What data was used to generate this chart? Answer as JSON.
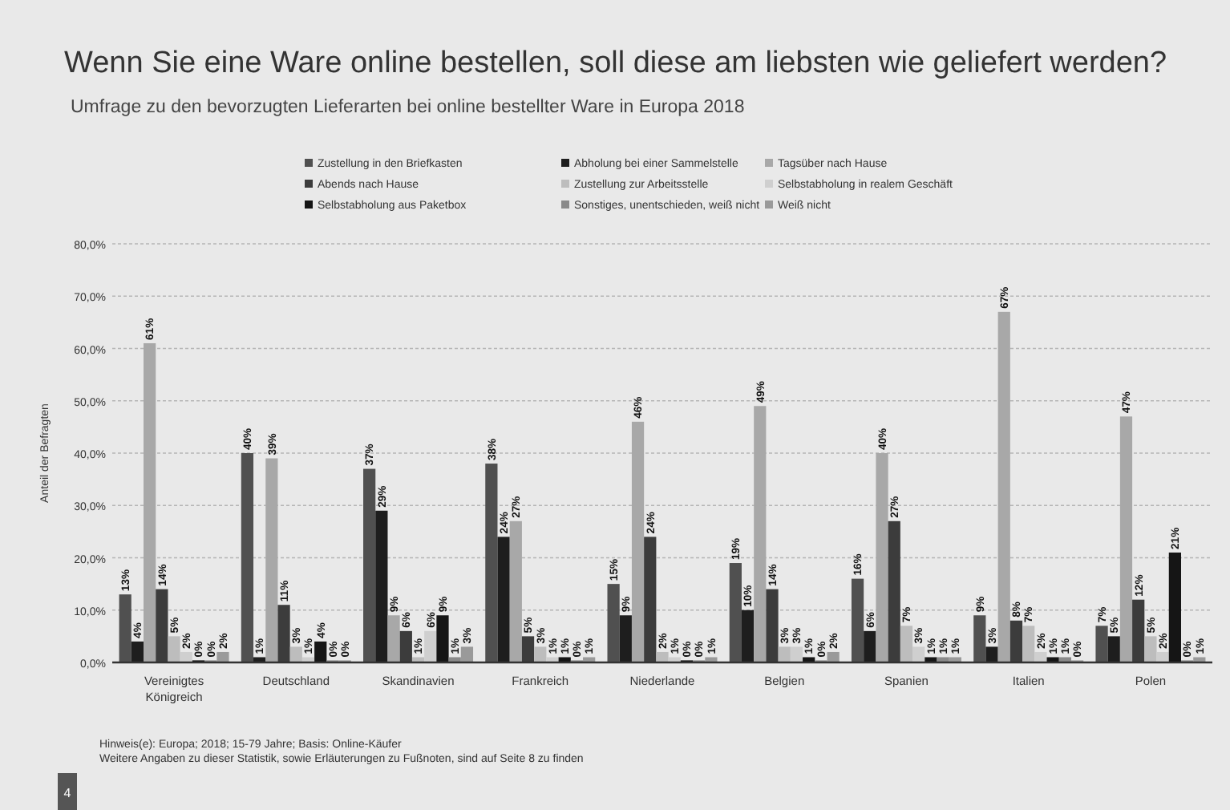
{
  "chart_data": {
    "type": "bar",
    "title": "Wenn Sie eine Ware online bestellen, soll diese am liebsten wie geliefert werden?",
    "subtitle": "Umfrage zu den bevorzugten Lieferarten bei online bestellter Ware in Europa 2018",
    "ylabel": "Anteil der Befragten",
    "categories": [
      "Vereinigtes Königreich",
      "Deutschland",
      "Skandinavien",
      "Frankreich",
      "Niederlande",
      "Belgien",
      "Spanien",
      "Italien",
      "Polen"
    ],
    "series": [
      {
        "name": "Zustellung in den Briefkasten",
        "color": "#505050",
        "values": [
          13,
          40,
          37,
          38,
          15,
          19,
          16,
          9,
          7
        ],
        "value_labels": [
          "13%",
          "40%",
          "37%",
          "38%",
          "15%",
          "19%",
          "16%",
          "9%",
          "7%"
        ]
      },
      {
        "name": "Abholung bei einer Sammelstelle",
        "color": "#1e1e1e",
        "values": [
          4,
          1,
          29,
          24,
          9,
          10,
          6,
          3,
          5
        ],
        "value_labels": [
          "4%",
          "1%",
          "29%",
          "24%",
          "9%",
          "10%",
          "6%",
          "3%",
          "5%"
        ]
      },
      {
        "name": "Tagsüber nach Hause",
        "color": "#a8a8a8",
        "values": [
          61,
          39,
          9,
          27,
          46,
          49,
          40,
          67,
          47
        ],
        "value_labels": [
          "61%",
          "39%",
          "9%",
          "27%",
          "46%",
          "49%",
          "40%",
          "67%",
          "47%"
        ]
      },
      {
        "name": "Abends nach Hause",
        "color": "#3c3c3c",
        "values": [
          14,
          11,
          6,
          5,
          24,
          14,
          27,
          8,
          12
        ],
        "value_labels": [
          "14%",
          "11%",
          "6%",
          "5%",
          "24%",
          "14%",
          "27%",
          "8%",
          "12%"
        ]
      },
      {
        "name": "Zustellung zur Arbeitsstelle",
        "color": "#bdbdbd",
        "values": [
          5,
          3,
          1,
          3,
          2,
          3,
          7,
          7,
          5
        ],
        "value_labels": [
          "5%",
          "3%",
          "1%",
          "3%",
          "2%",
          "3%",
          "7%",
          "7%",
          "5%"
        ]
      },
      {
        "name": "Selbstabholung in realem Geschäft",
        "color": "#cfcfcf",
        "values": [
          2,
          1,
          6,
          1,
          1,
          3,
          3,
          2,
          2
        ],
        "value_labels": [
          "2%",
          "1%",
          "6%",
          "1%",
          "1%",
          "3%",
          "3%",
          "2%",
          "2%"
        ]
      },
      {
        "name": "Selbstabholung aus Paketbox",
        "color": "#151515",
        "values": [
          0.4,
          4,
          9,
          1,
          0.4,
          1,
          1,
          1,
          21
        ],
        "value_labels": [
          "0%",
          "4%",
          "9%",
          "1%",
          "0%",
          "1%",
          "1%",
          "1%",
          "21%"
        ]
      },
      {
        "name": "Sonstiges, unentschieden, weiß nicht",
        "color": "#8a8a8a",
        "values": [
          0.4,
          0.4,
          1,
          0.4,
          0.4,
          0.4,
          1,
          1,
          0.4
        ],
        "value_labels": [
          "0%",
          "0%",
          "1%",
          "0%",
          "0%",
          "0%",
          "1%",
          "1%",
          "0%"
        ]
      },
      {
        "name": "Weiß nicht",
        "color": "#9a9a9a",
        "values": [
          2,
          0.4,
          3,
          1,
          1,
          2,
          1,
          0.4,
          1
        ],
        "value_labels": [
          "2%",
          "0%",
          "3%",
          "1%",
          "1%",
          "2%",
          "1%",
          "0%",
          "1%"
        ]
      }
    ],
    "ylim": [
      0,
      80
    ],
    "yticks": [
      {
        "value": 0,
        "label": "0,0%"
      },
      {
        "value": 10,
        "label": "10,0%"
      },
      {
        "value": 20,
        "label": "20,0%"
      },
      {
        "value": 30,
        "label": "30,0%"
      },
      {
        "value": 40,
        "label": "40,0%"
      },
      {
        "value": 50,
        "label": "50,0%"
      },
      {
        "value": 60,
        "label": "60,0%"
      },
      {
        "value": 70,
        "label": "70,0%"
      },
      {
        "value": 80,
        "label": "80,0%"
      }
    ],
    "grid": "y",
    "legend": "top",
    "annotations": [
      "Hinweis(e): Europa; 2018; 15-79 Jahre; Basis: Online-Käufer",
      "Weitere Angaben zu dieser Statistik, sowie Erläuterungen zu Fußnoten, sind auf Seite 8 zu finden",
      "4"
    ]
  }
}
